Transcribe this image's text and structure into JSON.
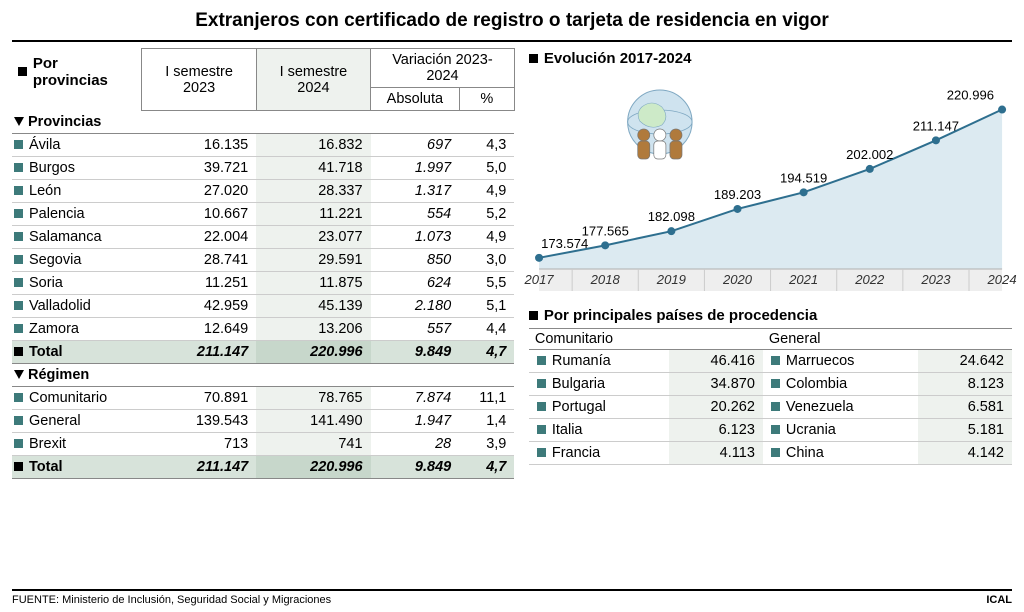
{
  "title": "Extranjeros con certificado de registro o tarjeta de residencia en vigor",
  "table": {
    "section_label": "Por provincias",
    "headers": {
      "c2023": "I semestre 2023",
      "c2024": "I semestre 2024",
      "variation": "Variación 2023-2024",
      "absolute": "Absoluta",
      "percent": "%"
    },
    "provincias_label": "Provincias",
    "provincias": [
      {
        "name": "Ávila",
        "y2023": "16.135",
        "y2024": "16.832",
        "abs": "697",
        "pct": "4,3"
      },
      {
        "name": "Burgos",
        "y2023": "39.721",
        "y2024": "41.718",
        "abs": "1.997",
        "pct": "5,0"
      },
      {
        "name": "León",
        "y2023": "27.020",
        "y2024": "28.337",
        "abs": "1.317",
        "pct": "4,9"
      },
      {
        "name": "Palencia",
        "y2023": "10.667",
        "y2024": "11.221",
        "abs": "554",
        "pct": "5,2"
      },
      {
        "name": "Salamanca",
        "y2023": "22.004",
        "y2024": "23.077",
        "abs": "1.073",
        "pct": "4,9"
      },
      {
        "name": "Segovia",
        "y2023": "28.741",
        "y2024": "29.591",
        "abs": "850",
        "pct": "3,0"
      },
      {
        "name": "Soria",
        "y2023": "11.251",
        "y2024": "11.875",
        "abs": "624",
        "pct": "5,5"
      },
      {
        "name": "Valladolid",
        "y2023": "42.959",
        "y2024": "45.139",
        "abs": "2.180",
        "pct": "5,1"
      },
      {
        "name": "Zamora",
        "y2023": "12.649",
        "y2024": "13.206",
        "abs": "557",
        "pct": "4,4"
      }
    ],
    "total_provincias": {
      "name": "Total",
      "y2023": "211.147",
      "y2024": "220.996",
      "abs": "9.849",
      "pct": "4,7"
    },
    "regimen_label": "Régimen",
    "regimen": [
      {
        "name": "Comunitario",
        "y2023": "70.891",
        "y2024": "78.765",
        "abs": "7.874",
        "pct": "11,1"
      },
      {
        "name": "General",
        "y2023": "139.543",
        "y2024": "141.490",
        "abs": "1.947",
        "pct": "1,4"
      },
      {
        "name": "Brexit",
        "y2023": "713",
        "y2024": "741",
        "abs": "28",
        "pct": "3,9"
      }
    ],
    "total_regimen": {
      "name": "Total",
      "y2023": "211.147",
      "y2024": "220.996",
      "abs": "9.849",
      "pct": "4,7"
    }
  },
  "evolution": {
    "label": "Evolución 2017-2024",
    "years": [
      "2017",
      "2018",
      "2019",
      "2020",
      "2021",
      "2022",
      "2023",
      "2024"
    ],
    "values": [
      173574,
      177565,
      182098,
      189203,
      194519,
      202002,
      211147,
      220996
    ],
    "labels": [
      "173.574",
      "177.565",
      "182.098",
      "189.203",
      "194.519",
      "202.002",
      "211.147",
      "220.996"
    ],
    "line_color": "#2e6f8f",
    "marker_color": "#2e6f8f",
    "fill_color": "#dceaf1",
    "axis_color": "#b0b0b0",
    "label_fontsize": 13,
    "marker_radius": 4,
    "line_width": 2,
    "ymin": 170000,
    "ymax": 225000,
    "globe_circle_fill": "#cfe3ef",
    "globe_stroke": "#7fa8c2",
    "person_colors": [
      "#b07a3c",
      "#ffffff",
      "#b07a3c"
    ]
  },
  "countries": {
    "label": "Por principales países de procedencia",
    "col1_label": "Comunitario",
    "col2_label": "General",
    "comunitario": [
      {
        "name": "Rumanía",
        "val": "46.416"
      },
      {
        "name": "Bulgaria",
        "val": "34.870"
      },
      {
        "name": "Portugal",
        "val": "20.262"
      },
      {
        "name": "Italia",
        "val": "6.123"
      },
      {
        "name": "Francia",
        "val": "4.113"
      }
    ],
    "general": [
      {
        "name": "Marruecos",
        "val": "24.642"
      },
      {
        "name": "Colombia",
        "val": "8.123"
      },
      {
        "name": "Venezuela",
        "val": "6.581"
      },
      {
        "name": "Ucrania",
        "val": "5.181"
      },
      {
        "name": "China",
        "val": "4.142"
      }
    ]
  },
  "footer": {
    "source": "FUENTE: Ministerio de Inclusión, Seguridad Social y Migraciones",
    "brand": "ICAL"
  },
  "bullet_color": "#3d7a7a"
}
